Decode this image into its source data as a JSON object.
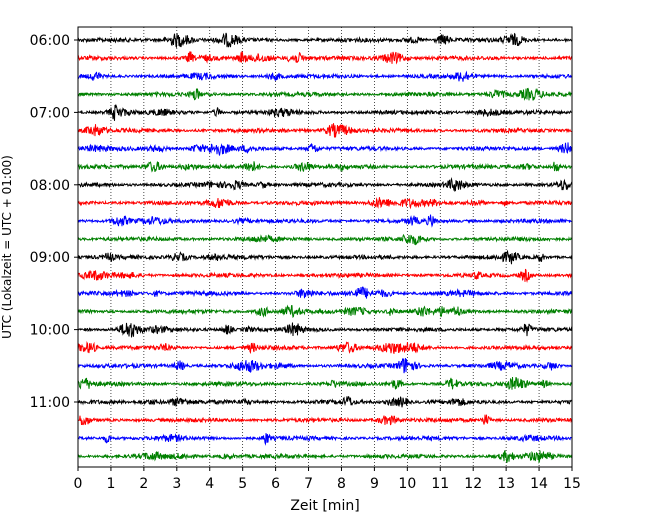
{
  "chart_data": {
    "type": "line",
    "title": "",
    "xlabel": "Zeit  [min]",
    "ylabel": "UTC (Lokalzeit = UTC + 01:00)",
    "xlim": [
      0,
      15
    ],
    "x_ticks": [
      0,
      1,
      2,
      3,
      4,
      5,
      6,
      7,
      8,
      9,
      10,
      11,
      12,
      13,
      14,
      15
    ],
    "x_tick_labels": [
      "0",
      "1",
      "2",
      "3",
      "4",
      "5",
      "6",
      "7",
      "8",
      "9",
      "10",
      "11",
      "12",
      "13",
      "14",
      "15"
    ],
    "y_tick_labels": [
      "06:00",
      "07:00",
      "08:00",
      "09:00",
      "10:00",
      "11:00"
    ],
    "grid": "vertical dotted",
    "legend": "none",
    "trace_colors": [
      "#000000",
      "#ff0000",
      "#0000ff",
      "#008000"
    ],
    "series": [
      {
        "start": "06:00"
      },
      {
        "start": "06:15"
      },
      {
        "start": "06:30"
      },
      {
        "start": "06:45"
      },
      {
        "start": "07:00"
      },
      {
        "start": "07:15"
      },
      {
        "start": "07:30"
      },
      {
        "start": "07:45"
      },
      {
        "start": "08:00"
      },
      {
        "start": "08:15"
      },
      {
        "start": "08:30"
      },
      {
        "start": "08:45"
      },
      {
        "start": "09:00"
      },
      {
        "start": "09:15"
      },
      {
        "start": "09:30"
      },
      {
        "start": "09:45"
      },
      {
        "start": "10:00"
      },
      {
        "start": "10:15"
      },
      {
        "start": "10:30"
      },
      {
        "start": "10:45"
      },
      {
        "start": "11:00"
      },
      {
        "start": "11:15"
      },
      {
        "start": "11:30"
      },
      {
        "start": "11:45"
      }
    ]
  }
}
